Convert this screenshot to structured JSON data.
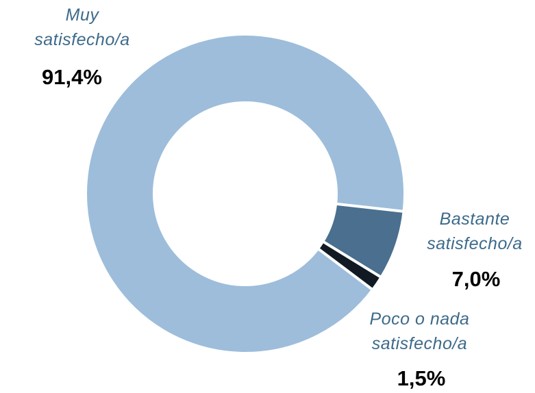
{
  "chart_data": {
    "type": "donut",
    "categories": [
      "Muy satisfecho/a",
      "Bastante satisfecho/a",
      "Poco o nada satisfecho/a"
    ],
    "values": [
      91.4,
      7.0,
      1.5
    ],
    "value_labels": [
      "91,4%",
      "7,0%",
      "1,5%"
    ],
    "colors": [
      "#9dbddb",
      "#4a6f8f",
      "#111a22"
    ]
  }
}
